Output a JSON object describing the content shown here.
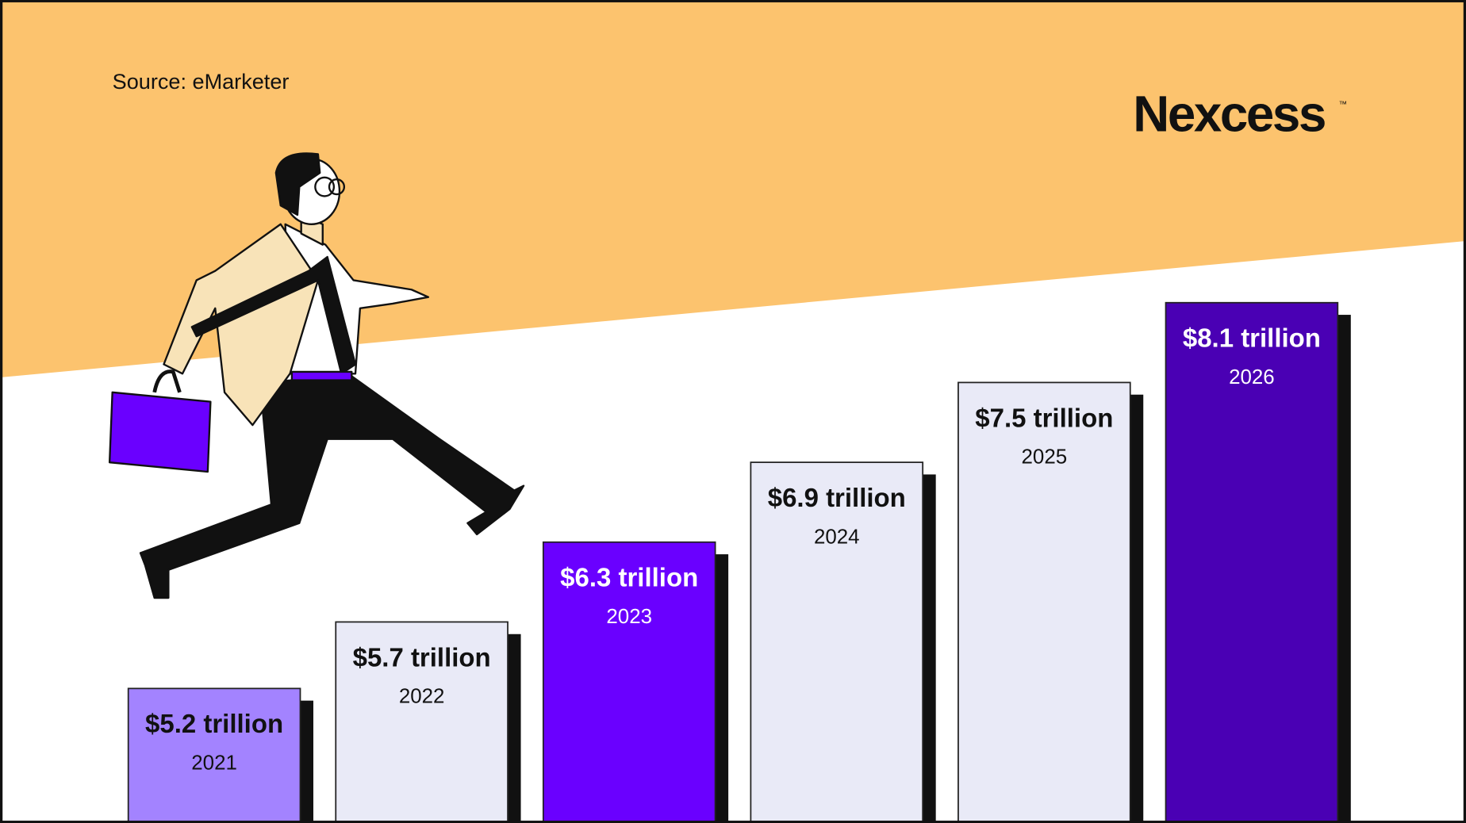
{
  "source": "Source: eMarketer",
  "logo": "Nexcess",
  "logo_mark": "™",
  "chart_data": {
    "type": "bar",
    "categories": [
      "2021",
      "2022",
      "2023",
      "2024",
      "2025",
      "2026"
    ],
    "values": [
      5.2,
      5.7,
      6.3,
      6.9,
      7.5,
      8.1
    ],
    "value_labels": [
      "$5.2 trillion",
      "$5.7 trillion",
      "$6.3 trillion",
      "$6.9 trillion",
      "$7.5 trillion",
      "$8.1 trillion"
    ],
    "colors": [
      "#a383ff",
      "#e9eaf7",
      "#6a00ff",
      "#e9eaf7",
      "#e9eaf7",
      "#4a00b4"
    ]
  }
}
